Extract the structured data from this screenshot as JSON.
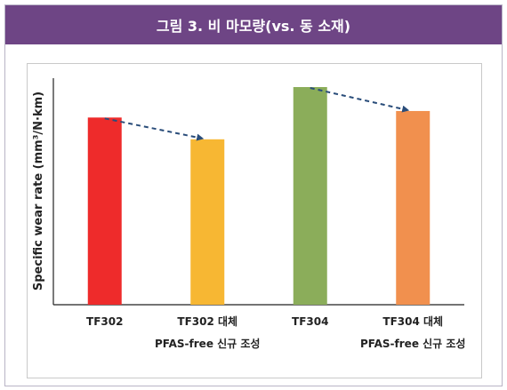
{
  "header": {
    "title": "그림 3. 비 마모량(vs. 동 소재)"
  },
  "chart_data": {
    "type": "bar",
    "title": "",
    "ylabel": "Specific wear rate (mm³/N·km)",
    "categories": [
      "TF302",
      "TF302 대체",
      "TF304",
      "TF304 대체"
    ],
    "subcaptions": [
      "",
      "PFAS-free 신규 조성",
      "",
      "PFAS-free 신규 조성"
    ],
    "values": [
      0.86,
      0.76,
      1.0,
      0.89
    ],
    "colors": [
      "#ee2b2b",
      "#f7b733",
      "#8bad5a",
      "#f1904e"
    ],
    "arrows": [
      {
        "from": 0,
        "to": 1
      },
      {
        "from": 2,
        "to": 3
      }
    ],
    "arrow_color": "#2a4d7a",
    "ylim": [
      0,
      1.0
    ],
    "grid": false
  }
}
